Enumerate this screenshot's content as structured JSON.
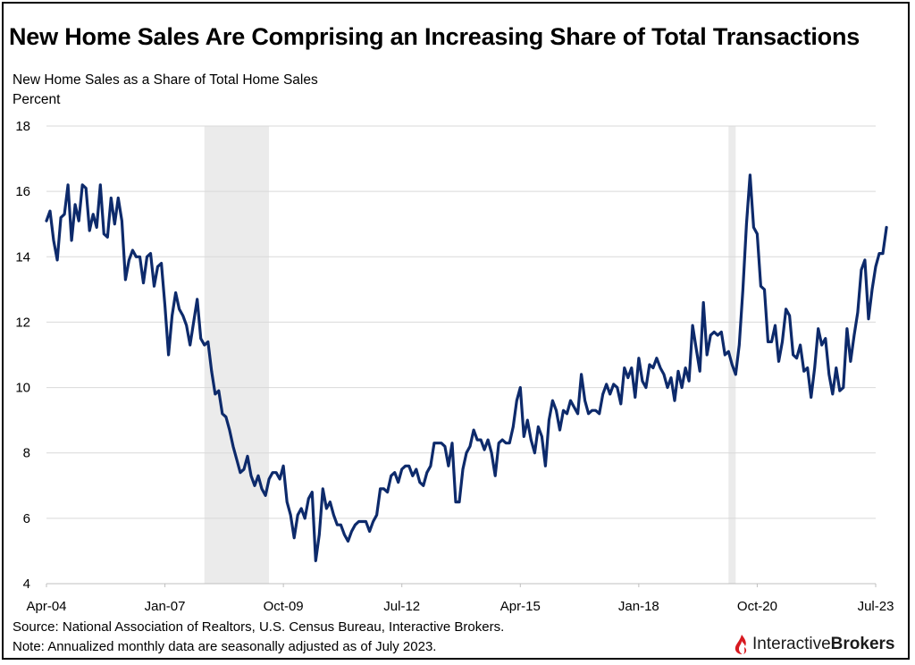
{
  "title": "New Home Sales Are Comprising an Increasing Share of Total Transactions",
  "subtitle": "New Home Sales as a Share of Total Home Sales",
  "unit_label": "Percent",
  "source": "Source: National Association of Realtors, U.S. Census Bureau, Interactive Brokers.",
  "note": "Note: Annualized monthly data are seasonally adjusted as of July 2023.",
  "logo": {
    "brand_regular": "Interactive",
    "brand_bold": "Brokers",
    "icon": "interactive-brokers-logo-icon"
  },
  "colors": {
    "line": "#0d2a6b",
    "recession": "#ebebeb",
    "grid": "#d9d9d9",
    "logo_red": "#d71920"
  },
  "chart_data": {
    "type": "line",
    "title": "New Home Sales Are Comprising an Increasing Share of Total Transactions",
    "ylabel": "Percent",
    "ylim": [
      4,
      18
    ],
    "yticks": [
      4,
      6,
      8,
      10,
      12,
      14,
      16,
      18
    ],
    "xtick_labels": [
      "Apr-04",
      "Jan-07",
      "Oct-09",
      "Jul-12",
      "Apr-15",
      "Jan-18",
      "Oct-20",
      "Jul-23"
    ],
    "x_range": [
      "Apr-04",
      "Jul-23"
    ],
    "grid": true,
    "recessions": [
      {
        "start": "Dec-07",
        "end": "Jun-09"
      },
      {
        "start": "Feb-20",
        "end": "Apr-20"
      }
    ],
    "series": [
      {
        "values": [
          15.1,
          15.4,
          14.5,
          13.9,
          15.2,
          15.3,
          16.2,
          14.5,
          15.6,
          15.1,
          16.2,
          16.1,
          14.8,
          15.3,
          14.9,
          16.2,
          14.7,
          14.6,
          15.8,
          15.0,
          15.8,
          15.1,
          13.3,
          13.9,
          14.2,
          14.0,
          14.0,
          13.2,
          14.0,
          14.1,
          13.1,
          13.7,
          13.8,
          12.5,
          11.0,
          12.2,
          12.9,
          12.4,
          12.2,
          11.9,
          11.3,
          12.0,
          12.7,
          11.5,
          11.3,
          11.4,
          10.5,
          9.8,
          9.9,
          9.2,
          9.1,
          8.7,
          8.2,
          7.8,
          7.4,
          7.5,
          7.9,
          7.3,
          7.0,
          7.3,
          6.9,
          6.7,
          7.2,
          7.4,
          7.4,
          7.2,
          7.6,
          6.5,
          6.1,
          5.4,
          6.1,
          6.3,
          6.0,
          6.6,
          6.8,
          4.7,
          5.5,
          6.9,
          6.3,
          6.5,
          6.1,
          5.8,
          5.8,
          5.5,
          5.3,
          5.6,
          5.8,
          5.9,
          5.9,
          5.9,
          5.6,
          5.9,
          6.1,
          6.9,
          6.9,
          6.8,
          7.3,
          7.4,
          7.1,
          7.5,
          7.6,
          7.6,
          7.3,
          7.5,
          7.1,
          7.0,
          7.4,
          7.6,
          8.3,
          8.3,
          8.3,
          8.2,
          7.6,
          8.3,
          6.5,
          6.5,
          7.5,
          8.0,
          8.2,
          8.7,
          8.4,
          8.4,
          8.1,
          8.4,
          8.0,
          7.3,
          8.3,
          8.4,
          8.3,
          8.3,
          8.8,
          9.6,
          10.0,
          8.5,
          9.0,
          8.4,
          8.0,
          8.8,
          8.5,
          7.6,
          9.0,
          9.6,
          9.3,
          8.7,
          9.3,
          9.2,
          9.6,
          9.4,
          9.2,
          10.4,
          9.6,
          9.2,
          9.3,
          9.3,
          9.2,
          9.8,
          10.1,
          9.8,
          10.1,
          10.0,
          9.5,
          10.6,
          10.3,
          10.6,
          9.7,
          10.9,
          10.2,
          10.0,
          10.7,
          10.6,
          10.9,
          10.6,
          10.4,
          10.0,
          10.3,
          9.6,
          10.5,
          10.0,
          10.6,
          10.2,
          11.9,
          11.2,
          10.5,
          12.6,
          11.0,
          11.6,
          11.7,
          11.6,
          11.7,
          11.0,
          11.1,
          10.7,
          10.4,
          11.3,
          13.0,
          15.0,
          16.5,
          14.9,
          14.7,
          13.1,
          13.0,
          11.4,
          11.4,
          11.9,
          10.8,
          11.4,
          12.4,
          12.2,
          11.0,
          10.9,
          11.3,
          10.5,
          10.6,
          9.7,
          10.6,
          11.8,
          11.3,
          11.5,
          10.4,
          9.8,
          10.6,
          9.9,
          10.0,
          11.8,
          10.8,
          11.6,
          12.3,
          13.6,
          13.9,
          12.1,
          13.0,
          13.7,
          14.1,
          14.1,
          14.9
        ]
      }
    ]
  }
}
